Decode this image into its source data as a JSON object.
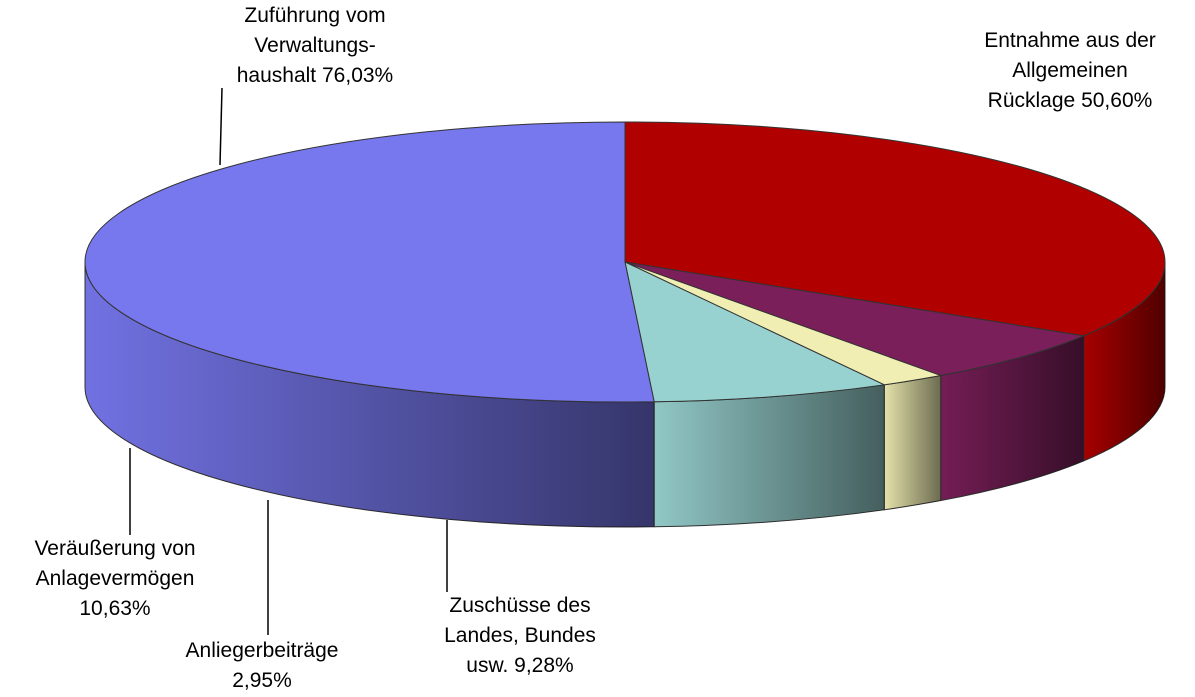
{
  "chart_data": {
    "type": "pie3d",
    "categories": [
      [
        "Entnahme aus der",
        "Allgemeinen",
        "Rücklage"
      ],
      [
        "Zuschüsse des",
        "Landes, Bundes",
        "usw."
      ],
      [
        "Anliegerbeiträge"
      ],
      [
        "Veräußerung von",
        "Anlagevermögen"
      ],
      [
        "Zuführung vom",
        "Verwaltungs-",
        "haushalt"
      ]
    ],
    "values": [
      50.6,
      9.28,
      2.95,
      10.63,
      76.03
    ],
    "value_labels": [
      "50,60%",
      "9,28%",
      "2,95%",
      "10,63%",
      "76,03%"
    ],
    "colors": [
      "#b00000",
      "#7a1f5a",
      "#f0eeb2",
      "#98d2d0",
      "#7777ee"
    ]
  }
}
